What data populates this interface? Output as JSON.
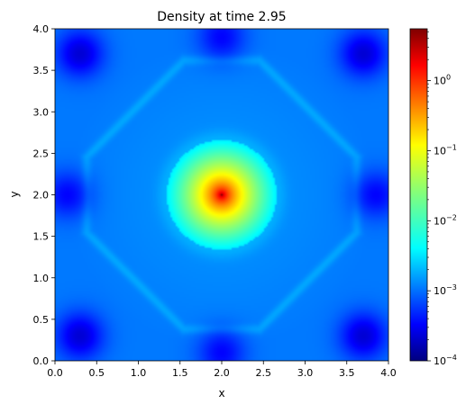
{
  "chart_data": {
    "type": "heatmap",
    "title": "Density at time 2.95",
    "xlabel": "x",
    "ylabel": "y",
    "xlim": [
      0.0,
      4.0
    ],
    "ylim": [
      0.0,
      4.0
    ],
    "x_ticks": [
      "0.0",
      "0.5",
      "1.0",
      "1.5",
      "2.0",
      "2.5",
      "3.0",
      "3.5",
      "4.0"
    ],
    "y_ticks": [
      "0.0",
      "0.5",
      "1.0",
      "1.5",
      "2.0",
      "2.5",
      "3.0",
      "3.5",
      "4.0"
    ],
    "colorbar": {
      "scale": "log",
      "colormap": "jet",
      "range": [
        0.0001,
        5.5
      ],
      "ticks": [
        {
          "value": 0.0001,
          "base": "10",
          "exp": "−4"
        },
        {
          "value": 0.001,
          "base": "10",
          "exp": "−3"
        },
        {
          "value": 0.01,
          "base": "10",
          "exp": "−2"
        },
        {
          "value": 0.1,
          "base": "10",
          "exp": "−1"
        },
        {
          "value": 1,
          "base": "10",
          "exp": "0"
        }
      ]
    },
    "field": {
      "center": [
        2.0,
        2.0
      ],
      "core_density": 5.5,
      "disk_radius": 0.66,
      "disk_density_edge": 0.005,
      "background_density": 0.0018,
      "low_density_regions": [
        {
          "name": "corner-bottom-left",
          "x": 0.3,
          "y": 0.3,
          "density": 0.00025
        },
        {
          "name": "corner-bottom-right",
          "x": 3.7,
          "y": 0.3,
          "density": 0.00025
        },
        {
          "name": "corner-top-left",
          "x": 0.3,
          "y": 3.7,
          "density": 0.00025
        },
        {
          "name": "corner-top-right",
          "x": 3.7,
          "y": 3.7,
          "density": 0.00025
        },
        {
          "name": "edge-left",
          "x": 0.15,
          "y": 2.0,
          "density": 0.0004
        },
        {
          "name": "edge-right",
          "x": 3.85,
          "y": 2.0,
          "density": 0.0004
        },
        {
          "name": "edge-top",
          "x": 2.0,
          "y": 3.9,
          "density": 0.0004
        },
        {
          "name": "edge-bottom",
          "x": 2.0,
          "y": 0.1,
          "density": 0.0004
        }
      ]
    }
  }
}
